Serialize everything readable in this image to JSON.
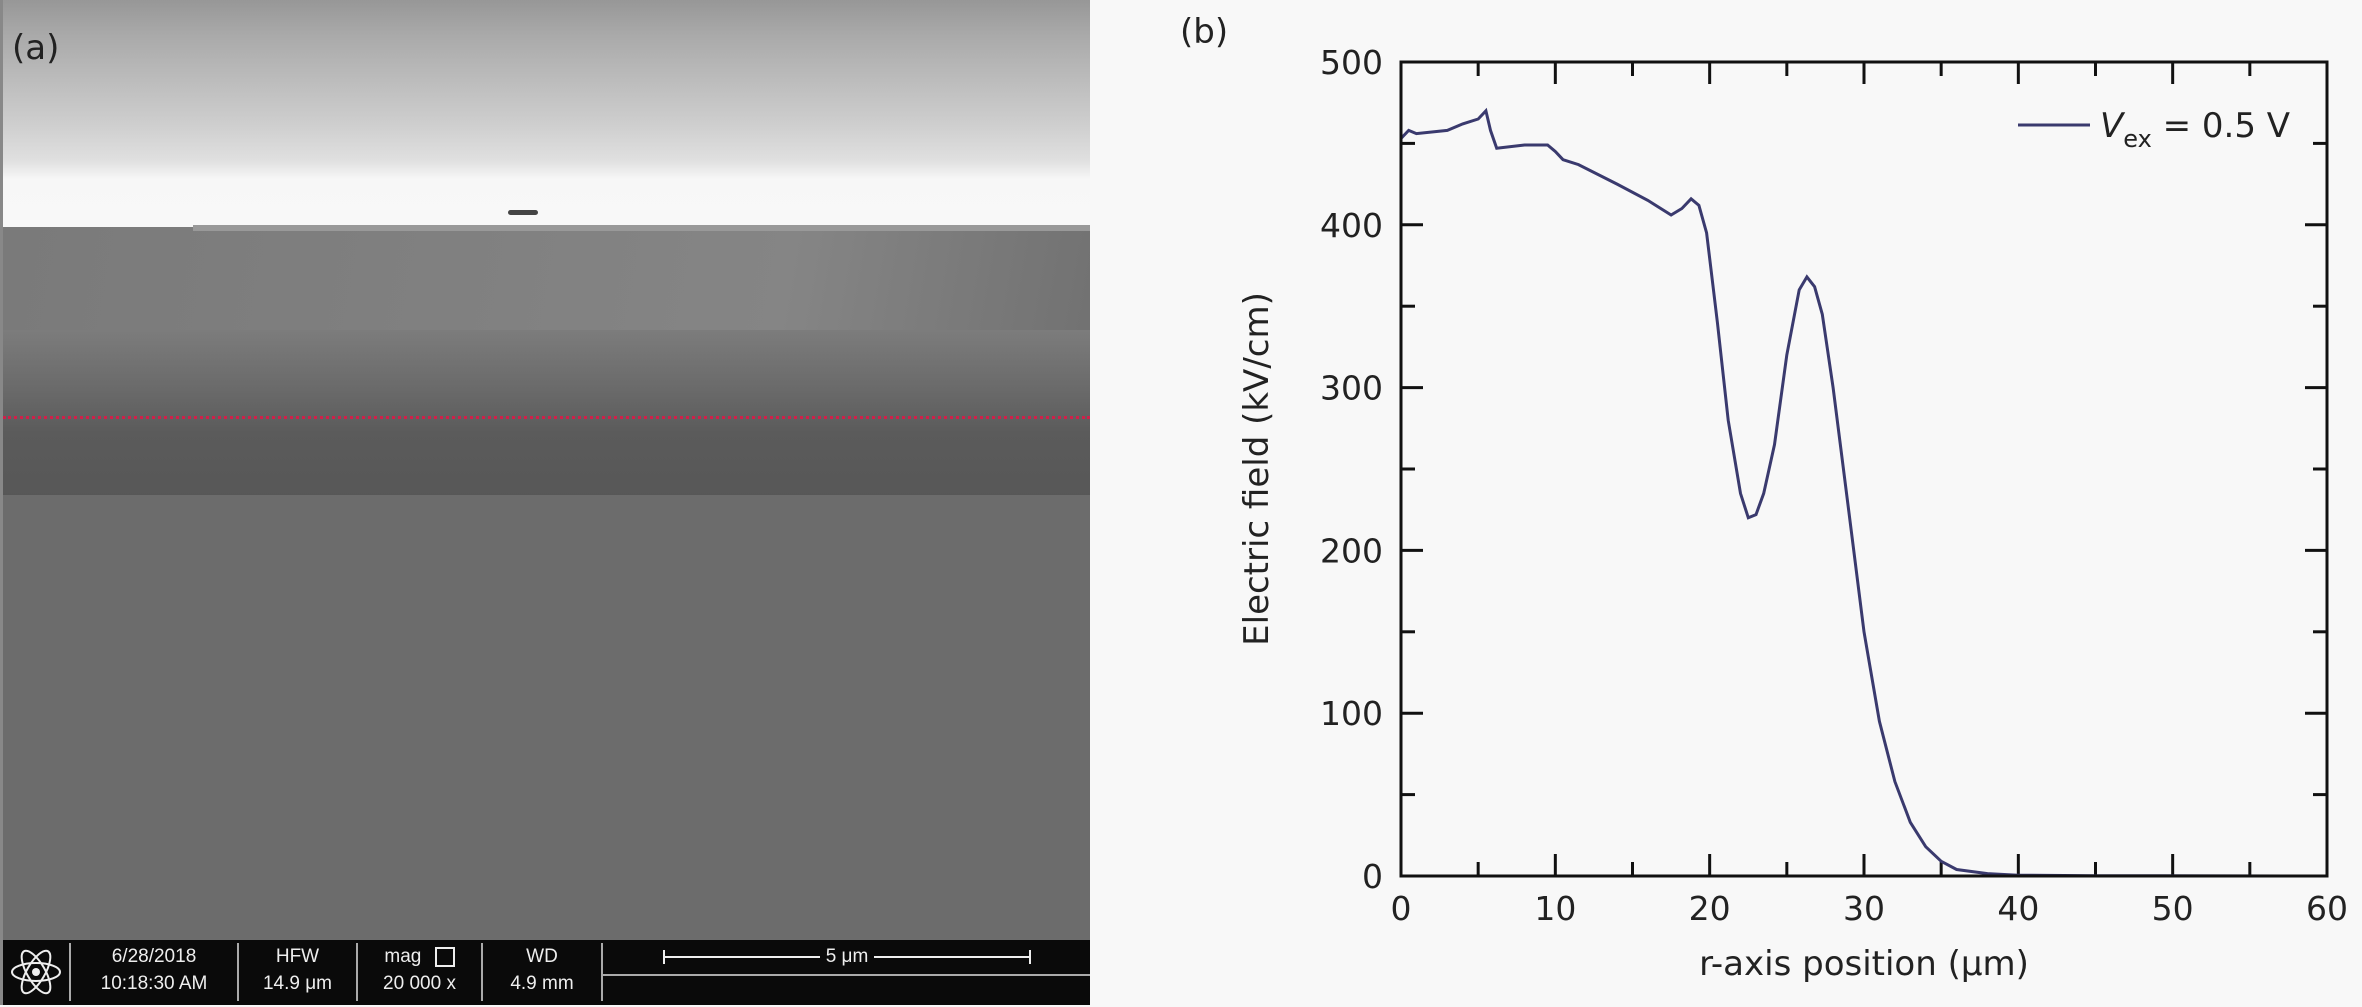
{
  "panel_a": {
    "label": "(a)",
    "infobar": {
      "date": "6/28/2018",
      "time": "10:18:30 AM",
      "hfw_label": "HFW",
      "hfw_value": "14.9 μm",
      "mag_label": "mag",
      "mag_value": "20 000 x",
      "wd_label": "WD",
      "wd_value": "4.9 mm",
      "scale_bar": "5 μm",
      "logo_icon": "atom-icon"
    },
    "line_scan_color": "#d0204a"
  },
  "chart_data": {
    "panel_label": "(b)",
    "type": "line",
    "xlabel": "r-axis position (μm)",
    "ylabel": "Electric field (kV/cm)",
    "xlim": [
      0,
      60
    ],
    "ylim": [
      0,
      500
    ],
    "xticks": [
      0,
      10,
      20,
      30,
      40,
      50,
      60
    ],
    "yticks": [
      0,
      100,
      200,
      300,
      400,
      500
    ],
    "grid": false,
    "legend": {
      "position": "top-right",
      "prefix": "V",
      "subscript": "ex",
      "suffix": " = 0.5 V"
    },
    "series": [
      {
        "name": "Vex = 0.5 V",
        "color": "#3a3a6e",
        "x": [
          0,
          0.5,
          1,
          3,
          4,
          5,
          5.5,
          5.8,
          6.2,
          8,
          9.5,
          10,
          10.5,
          11.5,
          14,
          16,
          17.5,
          18.2,
          18.8,
          19.3,
          19.8,
          20.5,
          21.2,
          22,
          22.5,
          23,
          23.5,
          24.2,
          25,
          25.8,
          26.3,
          26.8,
          27.3,
          28,
          29,
          30,
          31,
          32,
          33,
          34,
          35,
          36,
          38,
          40,
          45,
          60
        ],
        "y": [
          453,
          458,
          456,
          458,
          462,
          465,
          470,
          458,
          447,
          449,
          449,
          445,
          440,
          437,
          425,
          415,
          406,
          410,
          416,
          412,
          395,
          340,
          280,
          235,
          220,
          222,
          235,
          265,
          320,
          360,
          368,
          362,
          345,
          300,
          225,
          150,
          95,
          58,
          33,
          18,
          9,
          4,
          1.5,
          0.5,
          0.2,
          0
        ]
      }
    ]
  }
}
